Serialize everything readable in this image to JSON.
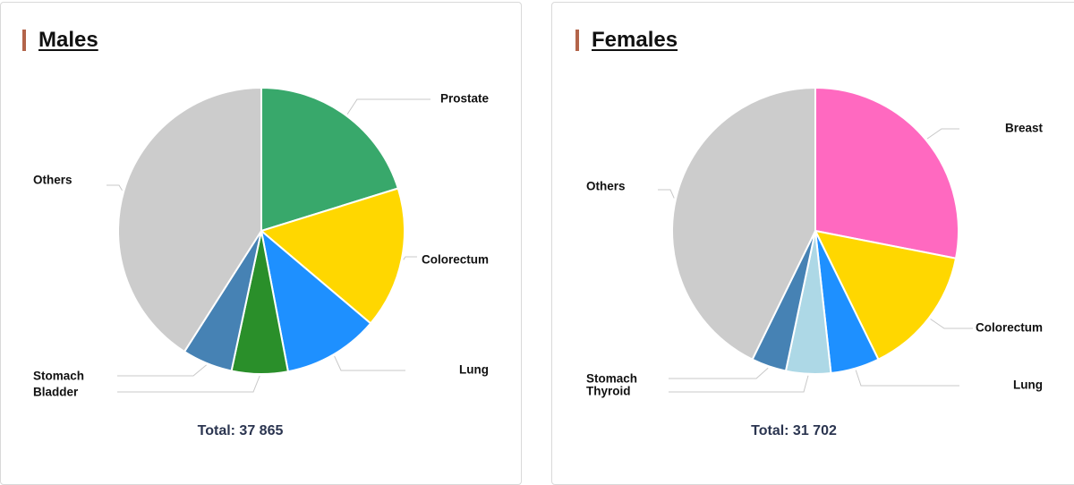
{
  "chart_data": [
    {
      "type": "pie",
      "title": "Males",
      "total_label": "Total: 37 865",
      "slices": [
        {
          "label": "Prostate",
          "value": 7650,
          "color": "#38a86b"
        },
        {
          "label": "Colorectum",
          "value": 6050,
          "color": "#ffd700"
        },
        {
          "label": "Lung",
          "value": 4100,
          "color": "#1e90ff"
        },
        {
          "label": "Bladder",
          "value": 2400,
          "color": "#2a8f2a"
        },
        {
          "label": "Stomach",
          "value": 2150,
          "color": "#4682b4"
        },
        {
          "label": "Others",
          "value": 15515,
          "color": "#cccccc"
        }
      ]
    },
    {
      "type": "pie",
      "title": "Females",
      "total_label": "Total: 31 702",
      "slices": [
        {
          "label": "Breast",
          "value": 8900,
          "color": "#ff69c0"
        },
        {
          "label": "Colorectum",
          "value": 4650,
          "color": "#ffd700"
        },
        {
          "label": "Lung",
          "value": 1750,
          "color": "#1e90ff"
        },
        {
          "label": "Thyroid",
          "value": 1600,
          "color": "#add8e6"
        },
        {
          "label": "Stomach",
          "value": 1250,
          "color": "#4682b4"
        },
        {
          "label": "Others",
          "value": 13552,
          "color": "#cccccc"
        }
      ]
    }
  ]
}
